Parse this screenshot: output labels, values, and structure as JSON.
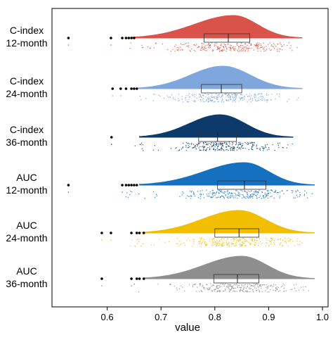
{
  "chart_data": {
    "type": "raincloud",
    "xlabel": "value",
    "xlim": [
      0.5,
      1.0
    ],
    "xticks": [
      "0.6",
      "0.7",
      "0.8",
      "0.9",
      "1.0"
    ],
    "grid": false,
    "series": [
      {
        "line1": "C-index",
        "line2": "12-month",
        "color": "#D9534A",
        "q1": 0.78,
        "median": 0.825,
        "q3": 0.865,
        "whisker_low": 0.655,
        "whisker_high": 0.962,
        "mode": 0.835,
        "outliers": [
          0.528,
          0.607,
          0.628,
          0.635,
          0.64,
          0.645,
          0.65
        ],
        "points_range": [
          0.64,
          0.962
        ]
      },
      {
        "line1": "C-index",
        "line2": "24-month",
        "color": "#7FA6DD",
        "q1": 0.775,
        "median": 0.812,
        "q3": 0.85,
        "whisker_low": 0.668,
        "whisker_high": 0.962,
        "mode": 0.815,
        "outliers": [
          0.61,
          0.625,
          0.635,
          0.645,
          0.65,
          0.655
        ],
        "points_range": [
          0.66,
          0.962
        ]
      },
      {
        "line1": "C-index",
        "line2": "36-month",
        "color": "#0B3A6B",
        "q1": 0.77,
        "median": 0.805,
        "q3": 0.84,
        "whisker_low": 0.67,
        "whisker_high": 0.945,
        "mode": 0.81,
        "outliers": [
          0.608
        ],
        "points_range": [
          0.65,
          0.945
        ]
      },
      {
        "line1": "AUC",
        "line2": "12-month",
        "color": "#1670C0",
        "q1": 0.805,
        "median": 0.855,
        "q3": 0.895,
        "whisker_low": 0.67,
        "whisker_high": 0.985,
        "mode": 0.855,
        "outliers": [
          0.528,
          0.628,
          0.635,
          0.64,
          0.645,
          0.65,
          0.655
        ],
        "points_range": [
          0.62,
          0.985
        ]
      },
      {
        "line1": "AUC",
        "line2": "24-month",
        "color": "#F2BE00",
        "q1": 0.8,
        "median": 0.845,
        "q3": 0.882,
        "whisker_low": 0.675,
        "whisker_high": 0.985,
        "mode": 0.845,
        "outliers": [
          0.59,
          0.607,
          0.645,
          0.655,
          0.66,
          0.668
        ],
        "points_range": [
          0.64,
          0.985
        ]
      },
      {
        "line1": "AUC",
        "line2": "36-month",
        "color": "#8E8E8E",
        "q1": 0.798,
        "median": 0.842,
        "q3": 0.882,
        "whisker_low": 0.678,
        "whisker_high": 0.985,
        "mode": 0.85,
        "outliers": [
          0.59,
          0.645,
          0.655,
          0.66,
          0.668
        ],
        "points_range": [
          0.645,
          0.985
        ]
      }
    ]
  }
}
